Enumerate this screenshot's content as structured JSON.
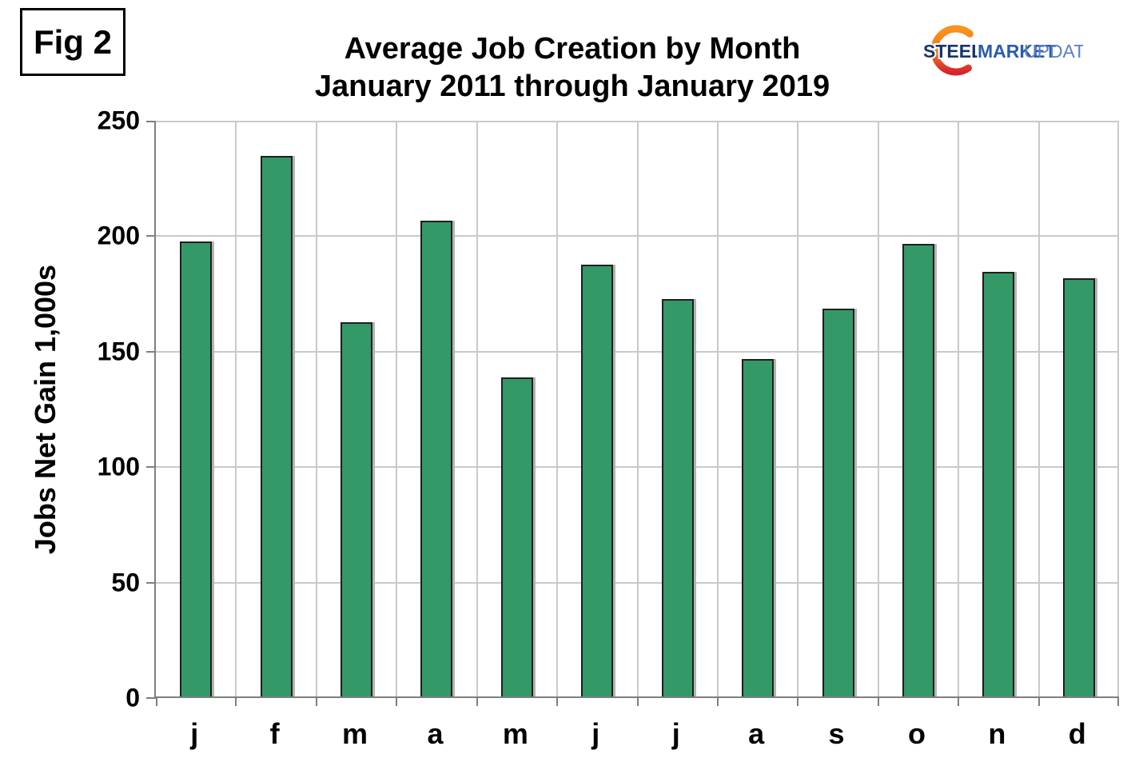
{
  "figure_label": "Fig 2",
  "logo": {
    "steel": "STEEL",
    "market": "MARKET",
    "update": "UPDATE",
    "steel_color": "#17356b",
    "market_color": "#2a5caa",
    "update_color": "#5a7ec2",
    "crescent_top_color": "#f7941e",
    "crescent_bottom_color": "#d6252b"
  },
  "chart_data": {
    "type": "bar",
    "title": "Average Job Creation by Month",
    "subtitle": "January 2011 through January 2019",
    "ylabel": "Jobs Net Gain 1,000s",
    "categories": [
      "j",
      "f",
      "m",
      "a",
      "m",
      "j",
      "j",
      "a",
      "s",
      "o",
      "n",
      "d"
    ],
    "values": [
      197,
      234,
      162,
      206,
      138,
      187,
      172,
      146,
      168,
      196,
      184,
      181
    ],
    "ylim": [
      0,
      250
    ],
    "yticks": [
      0,
      50,
      100,
      150,
      200,
      250
    ],
    "grid": true,
    "legend": "none",
    "bar_color": "#339966",
    "bar_border_color": "#1f1f1f",
    "gridline_color": "#c9c9c9",
    "axis_color": "#7f7f7f"
  }
}
